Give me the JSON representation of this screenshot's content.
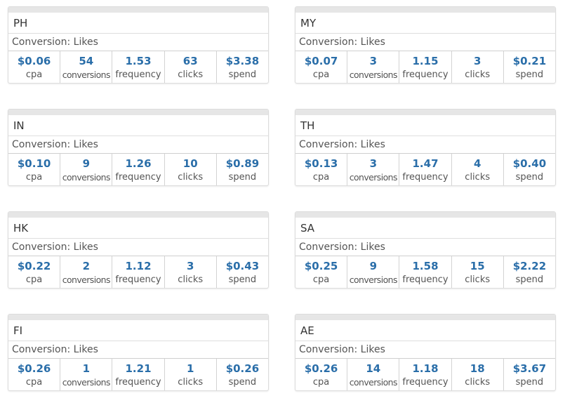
{
  "conversion_label": "Conversion: Likes",
  "metric_labels": [
    "cpa",
    "conversions",
    "frequency",
    "clicks",
    "spend"
  ],
  "cards": [
    {
      "country": "PH",
      "values": [
        "$0.06",
        "54",
        "1.53",
        "63",
        "$3.38"
      ]
    },
    {
      "country": "MY",
      "values": [
        "$0.07",
        "3",
        "1.15",
        "3",
        "$0.21"
      ]
    },
    {
      "country": "IN",
      "values": [
        "$0.10",
        "9",
        "1.26",
        "10",
        "$0.89"
      ]
    },
    {
      "country": "TH",
      "values": [
        "$0.13",
        "3",
        "1.47",
        "4",
        "$0.40"
      ]
    },
    {
      "country": "HK",
      "values": [
        "$0.22",
        "2",
        "1.12",
        "3",
        "$0.43"
      ]
    },
    {
      "country": "SA",
      "values": [
        "$0.25",
        "9",
        "1.58",
        "15",
        "$2.22"
      ]
    },
    {
      "country": "FI",
      "values": [
        "$0.26",
        "1",
        "1.21",
        "1",
        "$0.26"
      ]
    },
    {
      "country": "AE",
      "values": [
        "$0.26",
        "14",
        "1.18",
        "18",
        "$3.67"
      ]
    }
  ],
  "colors": {
    "accent": "#2a6ea9",
    "bar": "#e6e6e6",
    "border": "#dcdcdc"
  }
}
